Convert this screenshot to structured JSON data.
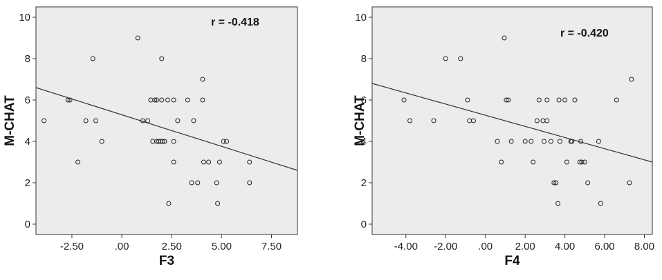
{
  "chart_data": [
    {
      "type": "scatter",
      "xlabel": "F3",
      "ylabel": "M-CHAT",
      "annotation": "r = -0.418",
      "xlim": [
        -4.3,
        8.8
      ],
      "ylim": [
        -0.5,
        10.5
      ],
      "xticks": [
        -2.5,
        0,
        2.5,
        5,
        7.5
      ],
      "xtick_labels": [
        "-2.50",
        ".00",
        "2.50",
        "5.00",
        "7.50"
      ],
      "yticks": [
        0,
        2,
        4,
        6,
        8,
        10
      ],
      "ytick_labels": [
        "0",
        "2",
        "4",
        "6",
        "8",
        "10"
      ],
      "grid": false,
      "fit_line": {
        "x": [
          -4.3,
          8.8
        ],
        "y": [
          6.6,
          2.6
        ]
      },
      "points": [
        {
          "x": -3.9,
          "y": 5
        },
        {
          "x": -2.7,
          "y": 6
        },
        {
          "x": -2.6,
          "y": 6
        },
        {
          "x": -2.2,
          "y": 3
        },
        {
          "x": -1.8,
          "y": 5
        },
        {
          "x": -1.45,
          "y": 8
        },
        {
          "x": -1.3,
          "y": 5
        },
        {
          "x": -1.0,
          "y": 4
        },
        {
          "x": 0.8,
          "y": 9
        },
        {
          "x": 1.05,
          "y": 5
        },
        {
          "x": 1.3,
          "y": 5
        },
        {
          "x": 1.45,
          "y": 6
        },
        {
          "x": 1.55,
          "y": 4
        },
        {
          "x": 1.65,
          "y": 6
        },
        {
          "x": 1.75,
          "y": 6
        },
        {
          "x": 1.75,
          "y": 4
        },
        {
          "x": 1.85,
          "y": 4
        },
        {
          "x": 1.95,
          "y": 4
        },
        {
          "x": 2.0,
          "y": 8
        },
        {
          "x": 2.0,
          "y": 6
        },
        {
          "x": 2.05,
          "y": 4
        },
        {
          "x": 2.15,
          "y": 4
        },
        {
          "x": 2.3,
          "y": 6
        },
        {
          "x": 2.35,
          "y": 1
        },
        {
          "x": 2.6,
          "y": 6
        },
        {
          "x": 2.6,
          "y": 4
        },
        {
          "x": 2.6,
          "y": 3
        },
        {
          "x": 2.8,
          "y": 5
        },
        {
          "x": 3.3,
          "y": 6
        },
        {
          "x": 3.5,
          "y": 2
        },
        {
          "x": 3.6,
          "y": 5
        },
        {
          "x": 3.8,
          "y": 2
        },
        {
          "x": 4.05,
          "y": 7
        },
        {
          "x": 4.05,
          "y": 6
        },
        {
          "x": 4.1,
          "y": 3
        },
        {
          "x": 4.35,
          "y": 3
        },
        {
          "x": 4.75,
          "y": 2
        },
        {
          "x": 4.8,
          "y": 1
        },
        {
          "x": 4.9,
          "y": 3
        },
        {
          "x": 5.1,
          "y": 4
        },
        {
          "x": 5.25,
          "y": 4
        },
        {
          "x": 6.4,
          "y": 3
        },
        {
          "x": 6.4,
          "y": 2
        }
      ]
    },
    {
      "type": "scatter",
      "xlabel": "F4",
      "ylabel": "M-CHAT",
      "annotation": "r = -0.420",
      "xlim": [
        -5.7,
        8.4
      ],
      "ylim": [
        -0.5,
        10.5
      ],
      "xticks": [
        -4,
        -2,
        0,
        2,
        4,
        6,
        8
      ],
      "xtick_labels": [
        "-4.00",
        "-2.00",
        ".00",
        "2.00",
        "4.00",
        "6.00",
        "8.00"
      ],
      "yticks": [
        0,
        2,
        4,
        6,
        8,
        10
      ],
      "ytick_labels": [
        "0",
        "2",
        "4",
        "6",
        "8",
        "10"
      ],
      "grid": false,
      "fit_line": {
        "x": [
          -5.7,
          8.4
        ],
        "y": [
          6.8,
          3.0
        ]
      },
      "points": [
        {
          "x": -4.1,
          "y": 6
        },
        {
          "x": -3.8,
          "y": 5
        },
        {
          "x": -2.6,
          "y": 5
        },
        {
          "x": -2.0,
          "y": 8
        },
        {
          "x": -1.25,
          "y": 8
        },
        {
          "x": -0.9,
          "y": 6
        },
        {
          "x": -0.8,
          "y": 5
        },
        {
          "x": -0.6,
          "y": 5
        },
        {
          "x": 0.6,
          "y": 4
        },
        {
          "x": 0.8,
          "y": 3
        },
        {
          "x": 0.95,
          "y": 9
        },
        {
          "x": 1.05,
          "y": 6
        },
        {
          "x": 1.15,
          "y": 6
        },
        {
          "x": 1.3,
          "y": 4
        },
        {
          "x": 2.0,
          "y": 4
        },
        {
          "x": 2.3,
          "y": 4
        },
        {
          "x": 2.4,
          "y": 3
        },
        {
          "x": 2.6,
          "y": 5
        },
        {
          "x": 2.7,
          "y": 6
        },
        {
          "x": 2.9,
          "y": 5
        },
        {
          "x": 2.95,
          "y": 4
        },
        {
          "x": 3.1,
          "y": 5
        },
        {
          "x": 3.1,
          "y": 6
        },
        {
          "x": 3.3,
          "y": 4
        },
        {
          "x": 3.45,
          "y": 2
        },
        {
          "x": 3.55,
          "y": 2
        },
        {
          "x": 3.65,
          "y": 1
        },
        {
          "x": 3.7,
          "y": 6
        },
        {
          "x": 3.75,
          "y": 4
        },
        {
          "x": 4.0,
          "y": 6
        },
        {
          "x": 4.1,
          "y": 3
        },
        {
          "x": 4.3,
          "y": 4
        },
        {
          "x": 4.35,
          "y": 4
        },
        {
          "x": 4.5,
          "y": 6
        },
        {
          "x": 4.75,
          "y": 3
        },
        {
          "x": 4.8,
          "y": 4
        },
        {
          "x": 4.85,
          "y": 3
        },
        {
          "x": 5.0,
          "y": 3
        },
        {
          "x": 5.15,
          "y": 2
        },
        {
          "x": 5.7,
          "y": 4
        },
        {
          "x": 5.8,
          "y": 1
        },
        {
          "x": 6.6,
          "y": 6
        },
        {
          "x": 7.25,
          "y": 2
        },
        {
          "x": 7.35,
          "y": 7
        }
      ]
    }
  ]
}
